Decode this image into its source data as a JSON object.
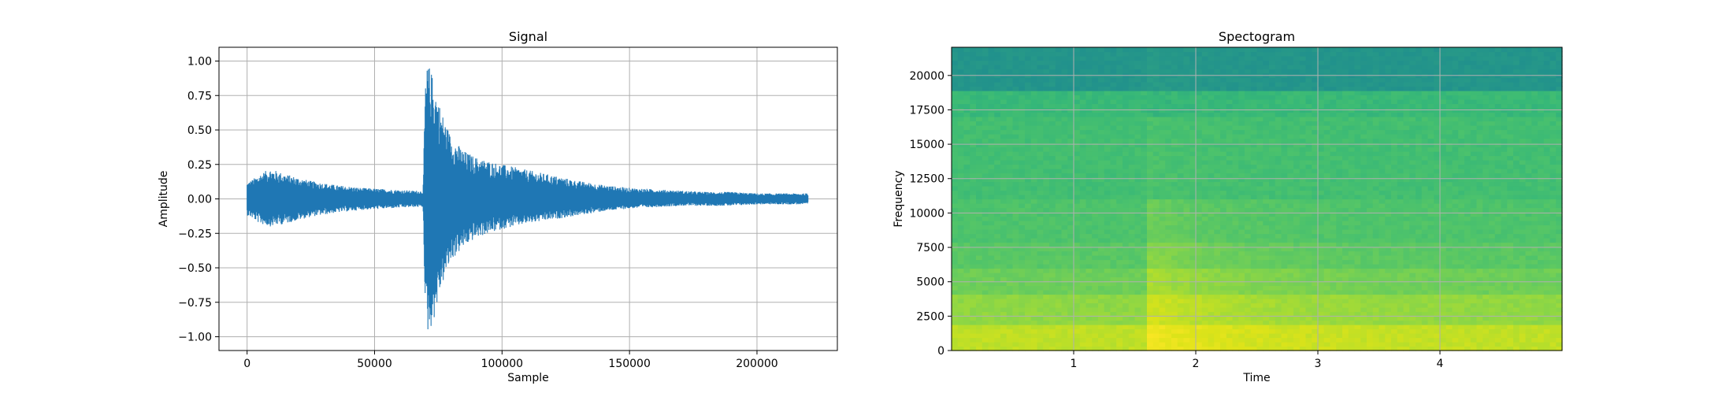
{
  "chart_data": [
    {
      "type": "line",
      "title": "Signal",
      "xlabel": "Sample",
      "ylabel": "Amplitude",
      "xlim": [
        -11025,
        231525
      ],
      "ylim": [
        -1.1,
        1.1
      ],
      "xticks": [
        0,
        50000,
        100000,
        150000,
        200000
      ],
      "xtick_labels": [
        "0",
        "50000",
        "100000",
        "150000",
        "200000"
      ],
      "yticks": [
        -1.0,
        -0.75,
        -0.5,
        -0.25,
        0.0,
        0.25,
        0.5,
        0.75,
        1.0
      ],
      "ytick_labels": [
        "−1.00",
        "−0.75",
        "−0.50",
        "−0.25",
        "0.00",
        "0.25",
        "0.50",
        "0.75",
        "1.00"
      ],
      "grid": true,
      "color": "#1f77b4",
      "series": [
        {
          "x": [
            0,
            2000,
            5000,
            9000,
            15000,
            25000,
            35000,
            45000,
            55000,
            65000,
            69000,
            70000,
            71000,
            73000,
            76000,
            80000,
            85000,
            90000,
            100000,
            110000,
            120000,
            130000,
            140000,
            150000,
            160000,
            170000,
            180000,
            190000,
            200000,
            210000,
            220000
          ],
          "env_upper": [
            0.12,
            0.14,
            0.18,
            0.22,
            0.18,
            0.13,
            0.1,
            0.08,
            0.07,
            0.06,
            0.06,
            0.9,
            0.99,
            0.88,
            0.65,
            0.45,
            0.35,
            0.3,
            0.25,
            0.21,
            0.17,
            0.13,
            0.1,
            0.08,
            0.07,
            0.06,
            0.05,
            0.05,
            0.04,
            0.04,
            0.04
          ],
          "env_lower": [
            -0.12,
            -0.14,
            -0.18,
            -0.2,
            -0.18,
            -0.13,
            -0.1,
            -0.08,
            -0.07,
            -0.06,
            -0.06,
            -0.9,
            -0.98,
            -0.9,
            -0.65,
            -0.45,
            -0.35,
            -0.28,
            -0.22,
            -0.18,
            -0.15,
            -0.12,
            -0.09,
            -0.07,
            -0.06,
            -0.05,
            -0.05,
            -0.05,
            -0.04,
            -0.04,
            -0.04
          ]
        }
      ]
    },
    {
      "type": "heatmap",
      "title": "Spectogram",
      "xlabel": "Time",
      "ylabel": "Frequency",
      "xlim": [
        0,
        5.0
      ],
      "ylim": [
        0,
        22050
      ],
      "xticks": [
        1,
        2,
        3,
        4
      ],
      "xtick_labels": [
        "1",
        "2",
        "3",
        "4"
      ],
      "yticks": [
        0,
        2500,
        5000,
        7500,
        10000,
        12500,
        15000,
        17500,
        20000
      ],
      "ytick_labels": [
        "0",
        "2500",
        "5000",
        "7500",
        "10000",
        "12500",
        "15000",
        "17500",
        "20000"
      ],
      "grid": true,
      "colormap": [
        "#21918c",
        "#2a9d86",
        "#35b779",
        "#4ec36b",
        "#6ccd5a",
        "#90d743",
        "#b5de2b",
        "#dce319",
        "#fde725"
      ],
      "onset_time": 1.6,
      "intensity_bands": [
        {
          "f_min": 0,
          "f_max": 2000,
          "base": 0.78,
          "onset": 0.95
        },
        {
          "f_min": 2000,
          "f_max": 4000,
          "base": 0.62,
          "onset": 0.85
        },
        {
          "f_min": 4000,
          "f_max": 6000,
          "base": 0.5,
          "onset": 0.72
        },
        {
          "f_min": 6000,
          "f_max": 8000,
          "base": 0.42,
          "onset": 0.6
        },
        {
          "f_min": 8000,
          "f_max": 11000,
          "base": 0.37,
          "onset": 0.5
        },
        {
          "f_min": 11000,
          "f_max": 17000,
          "base": 0.32,
          "onset": 0.36
        },
        {
          "f_min": 17000,
          "f_max": 19000,
          "base": 0.27,
          "onset": 0.25
        },
        {
          "f_min": 19000,
          "f_max": 22050,
          "base": 0.04,
          "onset": 0.1
        }
      ]
    }
  ]
}
